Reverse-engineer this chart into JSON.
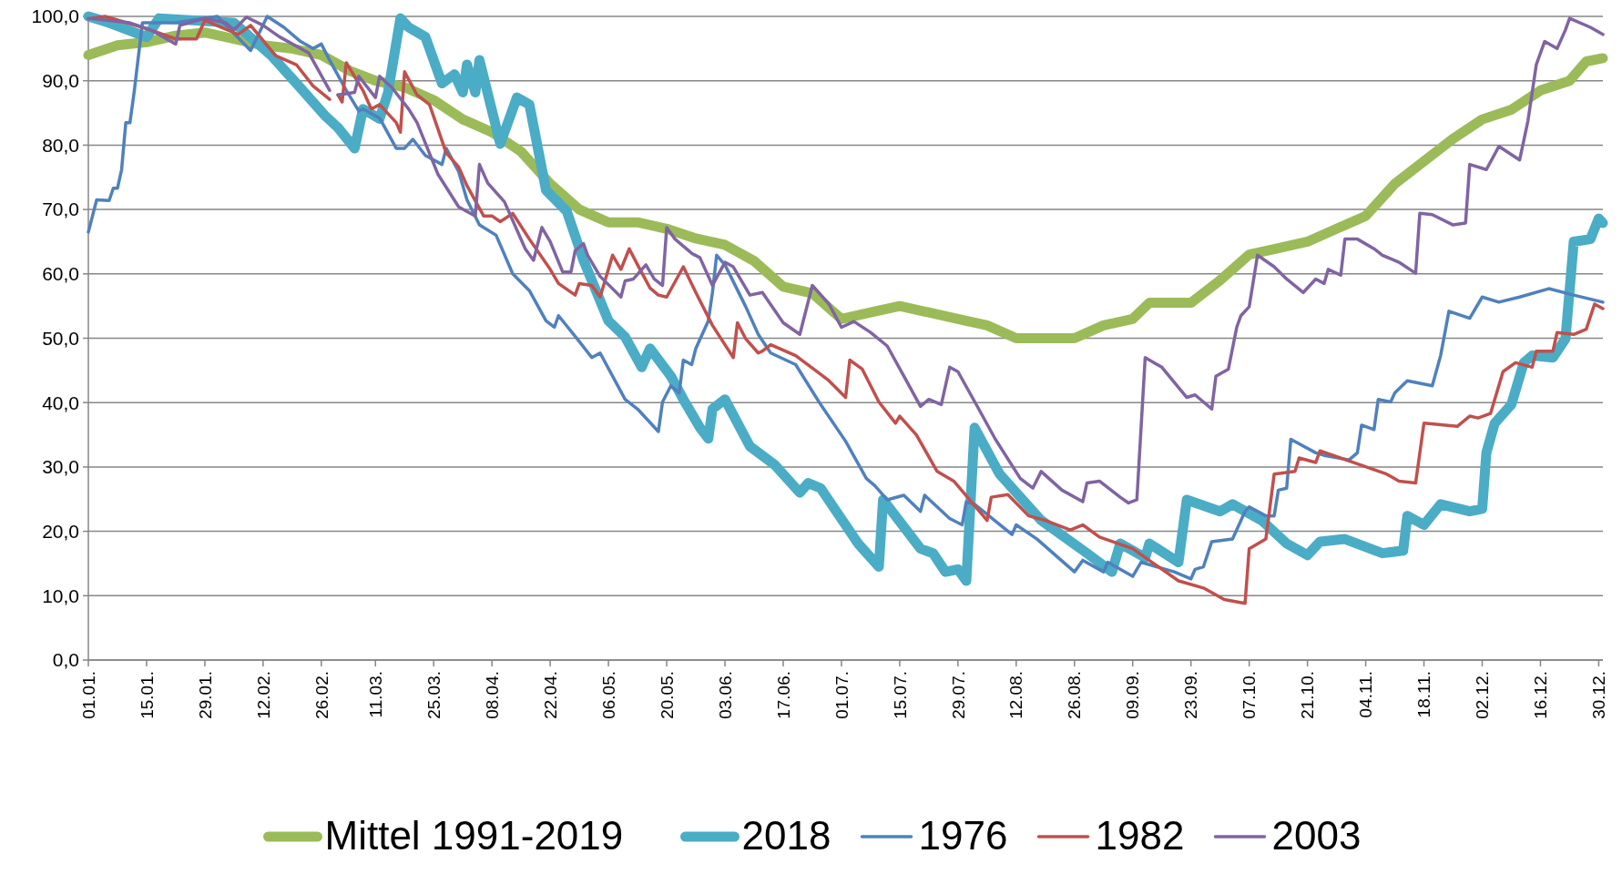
{
  "chart_data": {
    "type": "line",
    "xlim": [
      "--01-01",
      "--12-31"
    ],
    "xticks": [
      {
        "value": "--01-01",
        "label": "01.01."
      },
      {
        "value": "--01-15",
        "label": "15.01."
      },
      {
        "value": "--01-29",
        "label": "29.01."
      },
      {
        "value": "--02-12",
        "label": "12.02."
      },
      {
        "value": "--02-26",
        "label": "26.02."
      },
      {
        "value": "--03-11",
        "label": "11.03."
      },
      {
        "value": "--03-25",
        "label": "25.03."
      },
      {
        "value": "--04-08",
        "label": "08.04."
      },
      {
        "value": "--04-22",
        "label": "22.04."
      },
      {
        "value": "--05-06",
        "label": "06.05."
      },
      {
        "value": "--05-20",
        "label": "20.05."
      },
      {
        "value": "--06-03",
        "label": "03.06."
      },
      {
        "value": "--06-17",
        "label": "17.06."
      },
      {
        "value": "--07-01",
        "label": "01.07."
      },
      {
        "value": "--07-15",
        "label": "15.07."
      },
      {
        "value": "--07-29",
        "label": "29.07."
      },
      {
        "value": "--08-12",
        "label": "12.08."
      },
      {
        "value": "--08-26",
        "label": "26.08."
      },
      {
        "value": "--09-09",
        "label": "09.09."
      },
      {
        "value": "--09-23",
        "label": "23.09."
      },
      {
        "value": "--10-07",
        "label": "07.10."
      },
      {
        "value": "--10-21",
        "label": "21.10."
      },
      {
        "value": "--11-04",
        "label": "04.11."
      },
      {
        "value": "--11-18",
        "label": "18.11."
      },
      {
        "value": "--12-02",
        "label": "02.12."
      },
      {
        "value": "--12-16",
        "label": "16.12."
      },
      {
        "value": "--12-30",
        "label": "30.12."
      }
    ],
    "ylim": [
      0,
      100
    ],
    "yticks": [
      {
        "value": 0,
        "label": "0,0"
      },
      {
        "value": 10,
        "label": "10,0"
      },
      {
        "value": 20,
        "label": "20,0"
      },
      {
        "value": 30,
        "label": "30,0"
      },
      {
        "value": 40,
        "label": "40,0"
      },
      {
        "value": 50,
        "label": "50,0"
      },
      {
        "value": 60,
        "label": "60,0"
      },
      {
        "value": 70,
        "label": "70,0"
      },
      {
        "value": 80,
        "label": "80,0"
      },
      {
        "value": 90,
        "label": "90,0"
      },
      {
        "value": 100,
        "label": "100,0"
      }
    ],
    "grid": "y",
    "legend": "bottom",
    "series": [
      {
        "name": "Mittel 1991-2019",
        "color": "#9bbb59",
        "x": [
          "--01-01",
          "--01-08",
          "--01-15",
          "--01-22",
          "--01-29",
          "--02-05",
          "--02-12",
          "--02-19",
          "--02-26",
          "--03-05",
          "--03-11",
          "--03-18",
          "--03-25",
          "--04-01",
          "--04-08",
          "--04-15",
          "--04-22",
          "--04-29",
          "--05-06",
          "--05-13",
          "--05-20",
          "--05-27",
          "--06-03",
          "--06-10",
          "--06-17",
          "--06-24",
          "--07-01",
          "--07-08",
          "--07-15",
          "--07-22",
          "--07-29",
          "--08-05",
          "--08-12",
          "--08-19",
          "--08-26",
          "--09-02",
          "--09-09",
          "--09-13",
          "--09-23",
          "--09-30",
          "--10-07",
          "--10-14",
          "--10-21",
          "--10-28",
          "--11-04",
          "--11-11",
          "--11-18",
          "--11-25",
          "--12-02",
          "--12-09",
          "--12-16",
          "--12-23",
          "--12-27",
          "--12-31"
        ],
        "values": [
          94,
          95.5,
          96,
          97,
          97.5,
          96.5,
          95.5,
          95,
          94,
          91.5,
          90,
          89,
          87,
          84,
          82,
          79,
          74,
          70,
          68,
          68,
          67,
          65.5,
          64.5,
          62,
          58,
          57,
          53,
          54,
          55,
          54,
          53,
          52,
          50,
          50,
          50,
          52,
          53,
          55.5,
          55.5,
          59,
          63,
          64,
          65,
          67,
          69,
          74,
          77.5,
          81,
          84,
          85.5,
          88.5,
          90,
          93,
          93.5
        ]
      },
      {
        "name": "2018",
        "color": "#4bacc6",
        "x": [
          "--01-01",
          "--01-06",
          "--01-15",
          "--01-18",
          "--02-05",
          "--02-14",
          "--02-20",
          "--02-27",
          "--03-02",
          "--03-06",
          "--03-08",
          "--03-12",
          "--03-14",
          "--03-17",
          "--03-19",
          "--03-23",
          "--03-27",
          "--03-30",
          "--04-01",
          "--04-02",
          "--04-04",
          "--04-05",
          "--04-10",
          "--04-14",
          "--04-17",
          "--04-21",
          "--04-26",
          "--04-30",
          "--05-06",
          "--05-10",
          "--05-14",
          "--05-16",
          "--05-21",
          "--05-24",
          "--05-28",
          "--05-30",
          "--05-31",
          "--06-03",
          "--06-09",
          "--06-15",
          "--06-21",
          "--06-23",
          "--06-26",
          "--07-05",
          "--07-10",
          "--07-11",
          "--07-20",
          "--07-23",
          "--07-26",
          "--07-29",
          "--07-31",
          "--08-02",
          "--08-08",
          "--08-18",
          "--08-29",
          "--09-04",
          "--09-06",
          "--09-12",
          "--09-13",
          "--09-20",
          "--09-22",
          "--09-30",
          "--10-03",
          "--10-10",
          "--10-16",
          "--10-21",
          "--10-24",
          "--10-30",
          "--11-08",
          "--11-13",
          "--11-14",
          "--11-18",
          "--11-22",
          "--11-29",
          "--12-02",
          "--12-03",
          "--12-05",
          "--12-09",
          "--12-12",
          "--12-14",
          "--12-19",
          "--12-22",
          "--12-24",
          "--12-28",
          "--12-30",
          "--12-31"
        ],
        "values": [
          100,
          99,
          96.8,
          99.7,
          99,
          93.9,
          89.6,
          84.5,
          82.7,
          79.5,
          85.6,
          84.1,
          88.1,
          99.7,
          98.3,
          96.8,
          89.6,
          91,
          88.2,
          92.5,
          88.2,
          93.2,
          80.2,
          87.4,
          86.3,
          73,
          69.7,
          62.1,
          52.7,
          50.2,
          45.5,
          48.4,
          44.1,
          40.5,
          36.1,
          34.4,
          39,
          40.5,
          33.2,
          30.3,
          26,
          27.5,
          26.7,
          18.1,
          14.5,
          24.9,
          17.3,
          16.6,
          13.7,
          14.1,
          12.3,
          36.1,
          28.9,
          21.7,
          16.6,
          13.7,
          18.1,
          15.9,
          18.1,
          15.2,
          24.9,
          23.1,
          24.2,
          21.7,
          18.1,
          16.3,
          18.4,
          18.8,
          16.6,
          17,
          22.4,
          21,
          24.2,
          23.1,
          23.5,
          32.2,
          36.8,
          39.7,
          46.2,
          47.3,
          47,
          49.9,
          65,
          65.4,
          68.6,
          67.9
        ]
      },
      {
        "name": "1976",
        "color": "#4f81bd",
        "x": [
          "--01-01",
          "--01-03",
          "--01-06",
          "--01-07",
          "--01-08",
          "--01-09",
          "--01-10",
          "--01-11",
          "--01-12",
          "--01-14",
          "--01-22",
          "--02-01",
          "--02-09",
          "--02-13",
          "--02-17",
          "--02-21",
          "--02-24",
          "--02-26",
          "--02-28",
          "--03-04",
          "--03-07",
          "--03-08",
          "--03-12",
          "--03-16",
          "--03-18",
          "--03-20",
          "--03-23",
          "--03-27",
          "--03-28",
          "--03-31",
          "--04-02",
          "--04-05",
          "--04-09",
          "--04-13",
          "--04-17",
          "--04-21",
          "--04-23",
          "--04-24",
          "--04-29",
          "--05-02",
          "--05-04",
          "--05-10",
          "--05-13",
          "--05-18",
          "--05-19",
          "--05-21",
          "--05-23",
          "--05-24",
          "--05-26",
          "--05-27",
          "--05-30",
          "--05-31",
          "--06-01",
          "--06-03",
          "--06-08",
          "--06-11",
          "--06-14",
          "--06-20",
          "--06-26",
          "--07-02",
          "--07-07",
          "--07-09",
          "--07-12",
          "--07-16",
          "--07-20",
          "--07-21",
          "--07-24",
          "--07-27",
          "--07-30",
          "--07-31",
          "--08-02",
          "--08-11",
          "--08-12",
          "--08-17",
          "--08-26",
          "--08-28",
          "--09-02",
          "--09-03",
          "--09-09",
          "--09-11",
          "--09-19",
          "--09-23",
          "--09-24",
          "--09-26",
          "--09-28",
          "--10-03",
          "--10-06",
          "--10-07",
          "--10-11",
          "--10-13",
          "--10-14",
          "--10-16",
          "--10-17",
          "--10-23",
          "--10-25",
          "--10-31",
          "--11-02",
          "--11-03",
          "--11-06",
          "--11-07",
          "--11-10",
          "--11-11",
          "--11-14",
          "--11-20",
          "--11-22",
          "--11-24",
          "--11-29",
          "--12-02",
          "--12-06",
          "--12-11",
          "--12-18",
          "--12-24",
          "--12-31"
        ],
        "values": [
          66.5,
          71.5,
          71.4,
          73.3,
          73.3,
          76.2,
          83.5,
          83.5,
          88.2,
          99,
          99,
          100,
          94.7,
          100,
          98.3,
          96.1,
          95,
          95.7,
          93.2,
          88.5,
          85.3,
          85.6,
          84.2,
          79.5,
          79.5,
          80.9,
          78.4,
          77,
          79.5,
          75.9,
          71.5,
          67.6,
          66,
          60,
          57.4,
          52.7,
          51.7,
          53.5,
          49.5,
          47,
          47.7,
          40.5,
          39,
          35.5,
          40.1,
          42.6,
          41.5,
          46.6,
          45.9,
          48.4,
          52.7,
          57.1,
          62.9,
          61.4,
          54.9,
          50.6,
          47.7,
          45.9,
          39.7,
          34,
          28.2,
          27.1,
          24.9,
          25.6,
          23.1,
          25.6,
          23.8,
          22,
          21,
          24.6,
          24.2,
          19.5,
          21,
          18.8,
          13.7,
          15.5,
          13.7,
          15.2,
          13,
          15.2,
          13.7,
          12.6,
          14.1,
          14.5,
          18.4,
          18.8,
          23.1,
          23.8,
          22.4,
          22.4,
          26.4,
          26.7,
          34.3,
          32.2,
          31.8,
          31.1,
          32.2,
          36.5,
          35.8,
          40.5,
          40.1,
          41.5,
          43.4,
          42.6,
          47.3,
          54.2,
          53.1,
          56.4,
          55.6,
          56.4,
          57.7,
          56.7,
          55.6
        ]
      },
      {
        "name": "1982",
        "color": "#c0504d",
        "x": [
          "--01-01",
          "--01-05",
          "--01-14",
          "--01-22",
          "--01-27",
          "--01-29",
          "--02-02",
          "--02-06",
          "--02-09",
          "--02-15",
          "--02-20",
          "--02-24",
          "--02-28",
          "--03-01",
          "--03-02",
          "--03-03",
          "--03-04",
          "--03-08",
          "--03-10",
          "--03-12",
          "--03-16",
          "--03-17",
          "--03-18",
          "--03-21",
          "--03-24",
          "--03-28",
          "--03-31",
          "--04-02",
          "--04-06",
          "--04-08",
          "--04-10",
          "--04-13",
          "--04-17",
          "--04-22",
          "--04-24",
          "--04-28",
          "--04-29",
          "--05-02",
          "--05-04",
          "--05-07",
          "--05-09",
          "--05-11",
          "--05-13",
          "--05-16",
          "--05-18",
          "--05-20",
          "--05-24",
          "--05-27",
          "--05-31",
          "--06-05",
          "--06-06",
          "--06-08",
          "--06-11",
          "--06-12",
          "--06-14",
          "--06-20",
          "--06-26",
          "--06-28",
          "--07-02",
          "--07-03",
          "--07-06",
          "--07-10",
          "--07-14",
          "--07-15",
          "--07-19",
          "--07-24",
          "--07-28",
          "--08-05",
          "--08-06",
          "--08-10",
          "--08-15",
          "--08-19",
          "--08-25",
          "--08-28",
          "--09-01",
          "--09-09",
          "--09-20",
          "--09-26",
          "--10-01",
          "--10-06",
          "--10-07",
          "--10-11",
          "--10-13",
          "--10-18",
          "--10-19",
          "--10-23",
          "--10-24",
          "--11-01",
          "--11-09",
          "--11-12",
          "--11-16",
          "--11-18",
          "--11-26",
          "--11-29",
          "--12-01",
          "--12-04",
          "--12-07",
          "--12-10",
          "--12-14",
          "--12-15",
          "--12-19",
          "--12-20",
          "--12-24",
          "--12-27",
          "--12-29",
          "--12-31"
        ],
        "values": [
          99.6,
          100,
          98.3,
          96.5,
          96.5,
          99.4,
          98.3,
          97.2,
          98.6,
          93.9,
          92.5,
          89.2,
          87.1,
          null,
          87.8,
          86.7,
          92.8,
          88.5,
          85.6,
          86.3,
          83.5,
          82,
          91.4,
          87.8,
          86.3,
          78.8,
          76.6,
          73.7,
          69,
          69,
          68.1,
          69.4,
          65.4,
          60.7,
          58.5,
          56.7,
          58.5,
          58.2,
          56.4,
          62.9,
          60.7,
          63.9,
          61.4,
          57.8,
          56.7,
          56.4,
          61.1,
          57.1,
          52,
          47,
          52.4,
          49.9,
          47.7,
          48,
          49,
          47.3,
          44.4,
          43.4,
          40.8,
          46.6,
          45.2,
          40.1,
          36.8,
          37.9,
          35,
          29.3,
          27.8,
          21.7,
          25.3,
          25.7,
          22.4,
          21.7,
          20.2,
          21,
          19.1,
          17.3,
          12.3,
          11.2,
          9.4,
          8.8,
          17.3,
          18.8,
          28.9,
          29.3,
          31.4,
          30.7,
          32.5,
          30.7,
          28.9,
          27.8,
          27.5,
          36.8,
          36.3,
          37.9,
          37.6,
          38.3,
          44.8,
          46.2,
          45.5,
          48,
          48,
          50.9,
          50.6,
          51.4,
          55.3,
          54.6
        ]
      },
      {
        "name": "2003",
        "color": "#8064a2",
        "x": [
          "--01-01",
          "--01-11",
          "--01-16",
          "--01-22",
          "--01-23",
          "--01-29",
          "--02-03",
          "--02-05",
          "--02-08",
          "--02-12",
          "--02-16",
          "--02-23",
          "--02-28",
          "--03-01",
          "--03-02",
          "--03-06",
          "--03-07",
          "--03-11",
          "--03-12",
          "--03-15",
          "--03-19",
          "--03-21",
          "--03-26",
          "--03-31",
          "--04-04",
          "--04-05",
          "--04-07",
          "--04-11",
          "--04-16",
          "--04-18",
          "--04-20",
          "--04-22",
          "--04-25",
          "--04-27",
          "--04-28",
          "--04-30",
          "--05-01",
          "--05-04",
          "--05-09",
          "--05-10",
          "--05-12",
          "--05-15",
          "--05-17",
          "--05-19",
          "--05-20",
          "--05-22",
          "--05-26",
          "--05-28",
          "--05-31",
          "--06-03",
          "--06-05",
          "--06-09",
          "--06-12",
          "--06-17",
          "--06-21",
          "--06-24",
          "--06-28",
          "--07-01",
          "--07-04",
          "--07-08",
          "--07-12",
          "--07-16",
          "--07-20",
          "--07-22",
          "--07-25",
          "--07-27",
          "--07-29",
          "--08-03",
          "--08-07",
          "--08-13",
          "--08-16",
          "--08-18",
          "--08-23",
          "--08-28",
          "--08-29",
          "--09-01",
          "--09-06",
          "--09-08",
          "--09-10",
          "--09-12",
          "--09-16",
          "--09-22",
          "--09-24",
          "--09-28",
          "--09-29",
          "--10-02",
          "--10-04",
          "--10-05",
          "--10-07",
          "--10-09",
          "--10-13",
          "--10-16",
          "--10-20",
          "--10-23",
          "--10-25",
          "--10-26",
          "--10-29",
          "--10-30",
          "--11-02",
          "--11-06",
          "--11-08",
          "--11-12",
          "--11-16",
          "--11-17",
          "--11-20",
          "--11-25",
          "--11-28",
          "--11-29",
          "--12-03",
          "--12-06",
          "--12-11",
          "--12-13",
          "--12-15",
          "--12-17",
          "--12-20",
          "--12-22",
          "--12-23",
          "--12-28",
          "--12-31"
        ],
        "values": [
          99.7,
          99,
          97.9,
          95.7,
          98.6,
          99.7,
          99,
          97.9,
          99.9,
          98.6,
          96.8,
          94.3,
          88.5,
          null,
          87.8,
          88.2,
          90.7,
          87.4,
          90.7,
          88.9,
          85.6,
          83.5,
          75.5,
          70.4,
          69,
          77,
          74.1,
          71.2,
          63.9,
          62.1,
          67.2,
          65,
          60.3,
          60.3,
          63.6,
          64.7,
          62.9,
          59.6,
          56.4,
          58.9,
          59.2,
          61.4,
          59.2,
          58.2,
          67.2,
          65.4,
          63.2,
          62.5,
          58.2,
          61.8,
          61.1,
          56.7,
          57.1,
          52.4,
          50.6,
          58.2,
          55.3,
          51.7,
          52.6,
          50.9,
          48.8,
          44.1,
          39.4,
          40.5,
          39.7,
          45.5,
          44.8,
          39,
          34.3,
          28.2,
          26.7,
          29.3,
          26.4,
          24.6,
          27.5,
          27.8,
          25.3,
          24.4,
          24.9,
          47,
          45.5,
          40.8,
          41.2,
          39,
          44.1,
          45.2,
          51.7,
          53.5,
          54.9,
          62.9,
          61.1,
          59.2,
          57.1,
          59.2,
          58.5,
          60.7,
          59.8,
          65.4,
          65.4,
          63.9,
          62.9,
          61.8,
          60.1,
          69.4,
          69.2,
          67.6,
          67.9,
          77,
          76.2,
          79.8,
          77.7,
          83.8,
          92.5,
          96.1,
          95,
          97.9,
          99.7,
          98.3,
          97.2
        ]
      }
    ]
  }
}
